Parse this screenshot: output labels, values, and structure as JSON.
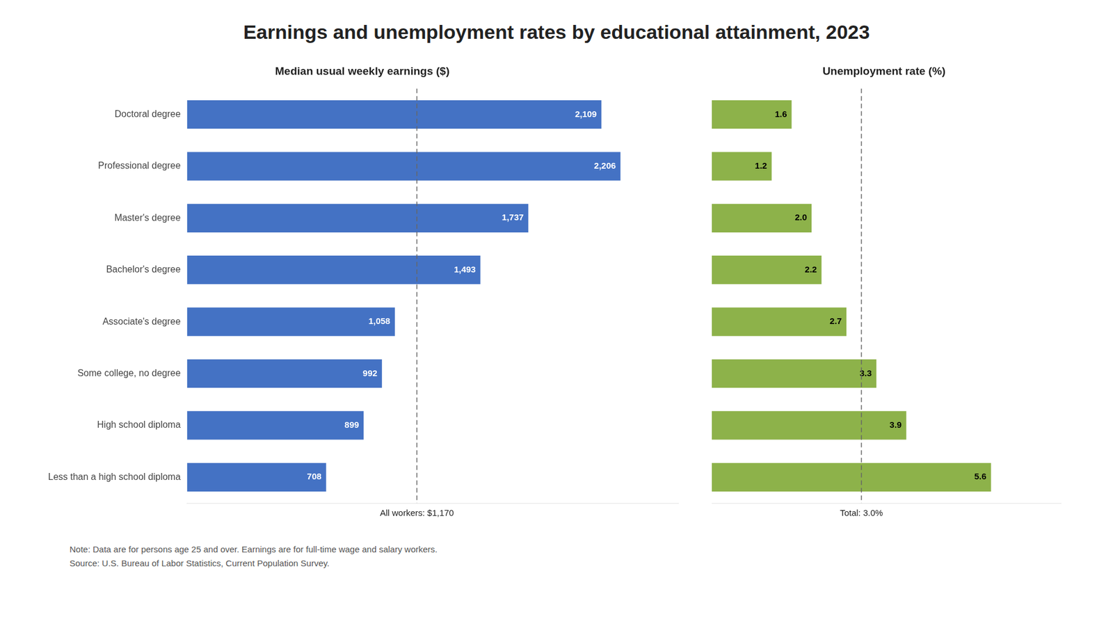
{
  "title": "Earnings and unemployment rates by educational attainment, 2023",
  "annotations": [
    "Note: Data are for persons age 25 and over. Earnings are for full-time wage and salary workers.",
    "Source: U.S. Bureau of Labor Statistics, Current Population Survey."
  ],
  "chart_data": [
    {
      "type": "bar",
      "orientation": "horizontal",
      "title": "Median usual weekly earnings ($)",
      "categories": [
        "Doctoral degree",
        "Professional degree",
        "Master's degree",
        "Bachelor's degree",
        "Associate's degree",
        "Some college, no degree",
        "High school diploma",
        "Less than a high school diploma"
      ],
      "values": [
        2109,
        2206,
        1737,
        1493,
        1058,
        992,
        899,
        708
      ],
      "value_labels": [
        "2,109",
        "2,206",
        "1,737",
        "1,493",
        "1,058",
        "992",
        "899",
        "708"
      ],
      "color": "#4472C4",
      "xlim": [
        0,
        2500
      ],
      "grid": false,
      "data_labels": true,
      "tick_labels": "y",
      "annotations": [
        {
          "text": "All workers: $1,170",
          "x": 1170,
          "line_style": "dashed"
        }
      ]
    },
    {
      "type": "bar",
      "orientation": "horizontal",
      "title": "Unemployment rate (%)",
      "categories": [
        "Doctoral degree",
        "Professional degree",
        "Master's degree",
        "Bachelor's degree",
        "Associate's degree",
        "Some college, no degree",
        "High school diploma",
        "Less than a high school diploma"
      ],
      "values": [
        1.6,
        1.2,
        2.0,
        2.2,
        2.7,
        3.3,
        3.9,
        5.6
      ],
      "value_labels": [
        "1.6",
        "1.2",
        "2.0",
        "2.2",
        "2.7",
        "3.3",
        "3.9",
        "5.6"
      ],
      "color": "#8DB24A",
      "xlim": [
        0,
        7
      ],
      "grid": false,
      "data_labels": true,
      "tick_labels": false,
      "annotations": [
        {
          "text": "Total: 3.0%",
          "x": 3.0,
          "line_style": "dashed"
        }
      ]
    }
  ]
}
